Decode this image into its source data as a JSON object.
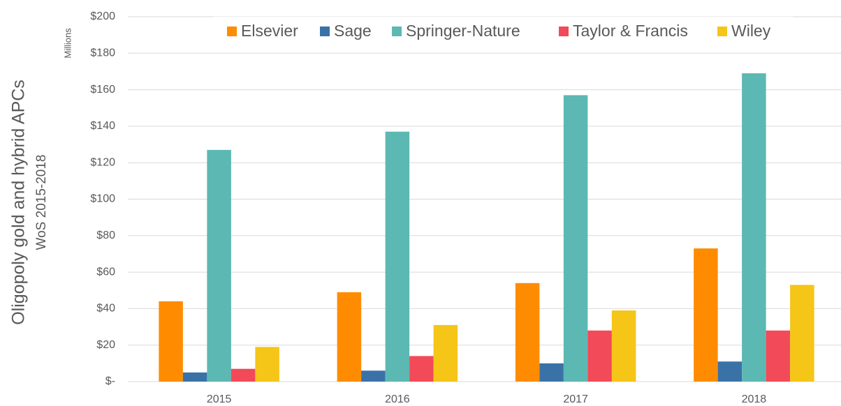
{
  "chart_data": {
    "type": "bar",
    "y_axis_title": "Oligopoly gold and hybrid APCs",
    "y_axis_subtitle": "WoS 2015-2018",
    "y_unit_label": "Millions",
    "categories": [
      "2015",
      "2016",
      "2017",
      "2018"
    ],
    "series": [
      {
        "name": "Elsevier",
        "color": "#ff8c00",
        "values": [
          44,
          49,
          54,
          73
        ]
      },
      {
        "name": "Sage",
        "color": "#3a72a8",
        "values": [
          5,
          6,
          10,
          11
        ]
      },
      {
        "name": "Springer-Nature",
        "color": "#5cb8b2",
        "values": [
          127,
          137,
          157,
          169
        ]
      },
      {
        "name": "Taylor & Francis",
        "color": "#f24a58",
        "values": [
          7,
          14,
          28,
          28
        ]
      },
      {
        "name": "Wiley",
        "color": "#f5c518",
        "values": [
          19,
          31,
          39,
          53
        ]
      }
    ],
    "ylim": [
      0,
      200
    ],
    "yticks": [
      {
        "value": 0,
        "label": "$-"
      },
      {
        "value": 20,
        "label": "$20"
      },
      {
        "value": 40,
        "label": "$40"
      },
      {
        "value": 60,
        "label": "$60"
      },
      {
        "value": 80,
        "label": "$80"
      },
      {
        "value": 100,
        "label": "$100"
      },
      {
        "value": 120,
        "label": "$120"
      },
      {
        "value": 140,
        "label": "$140"
      },
      {
        "value": 160,
        "label": "$160"
      },
      {
        "value": 180,
        "label": "$180"
      },
      {
        "value": 200,
        "label": "$200"
      }
    ],
    "grid": true,
    "legend": "top"
  }
}
